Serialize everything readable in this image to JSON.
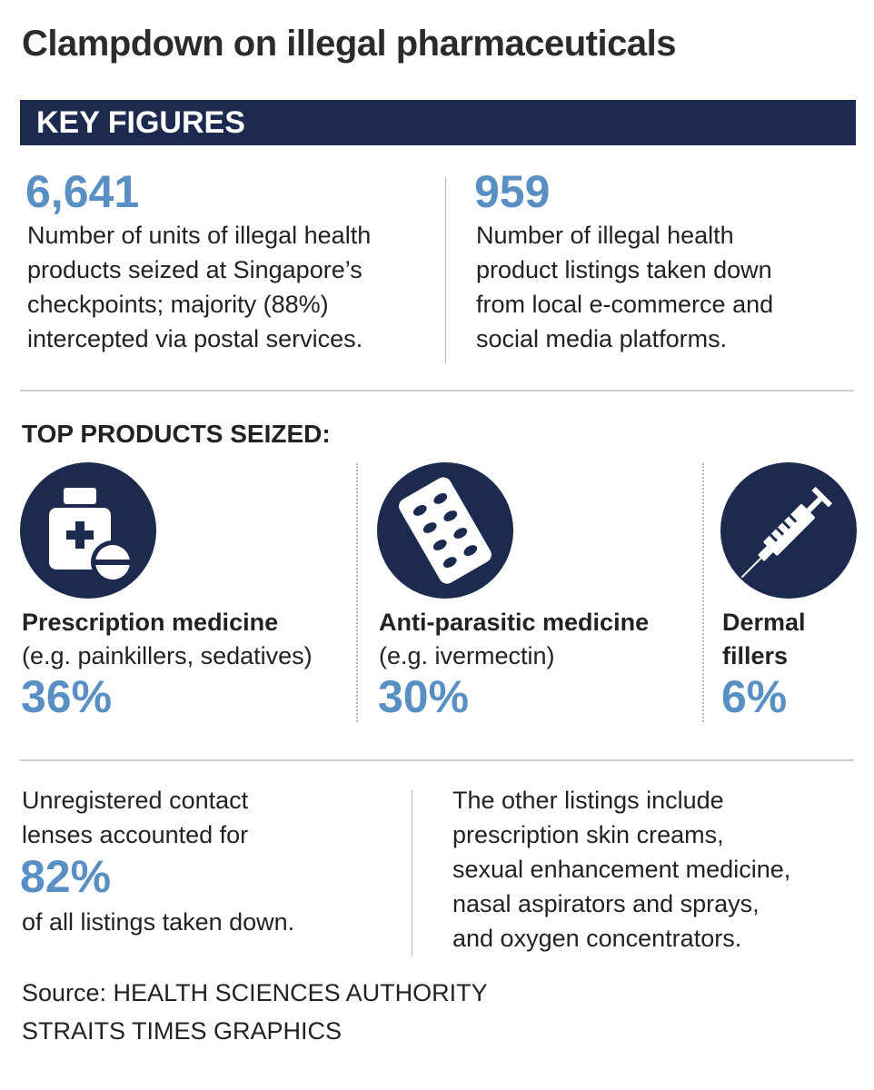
{
  "title": "Clampdown on illegal pharmaceuticals",
  "key_figures": {
    "heading": "KEY FIGURES",
    "items": [
      {
        "figure": "6,641",
        "lines": [
          "Number of units of illegal health",
          "products seized at Singapore’s",
          "checkpoints; majority (88%)",
          "intercepted via postal services."
        ]
      },
      {
        "figure": "959",
        "lines": [
          "Number of illegal health",
          "product listings taken down",
          "from local e-commerce and",
          "social media platforms."
        ]
      }
    ]
  },
  "top_products": {
    "heading": "TOP PRODUCTS SEIZED:",
    "items": [
      {
        "name_lines": [
          "Prescription medicine"
        ],
        "note": "(e.g. painkillers, sedatives)",
        "share": "36%"
      },
      {
        "name_lines": [
          "Anti-parasitic medicine"
        ],
        "note": "(e.g. ivermectin)",
        "share": "30%"
      },
      {
        "name_lines": [
          "Dermal",
          "fillers"
        ],
        "share": "6%"
      }
    ]
  },
  "listings": {
    "left": {
      "lines_before": [
        "Unregistered contact",
        "lenses accounted for"
      ],
      "figure": "82%",
      "lines_after": [
        "of all listings taken down."
      ]
    },
    "right": {
      "lines": [
        "The other listings include",
        "prescription skin creams,",
        "sexual enhancement medicine,",
        "nasal aspirators and sprays,",
        "and oxygen concentrators."
      ]
    }
  },
  "source": [
    "Source: HEALTH SCIENCES AUTHORITY",
    "STRAITS TIMES GRAPHICS"
  ]
}
